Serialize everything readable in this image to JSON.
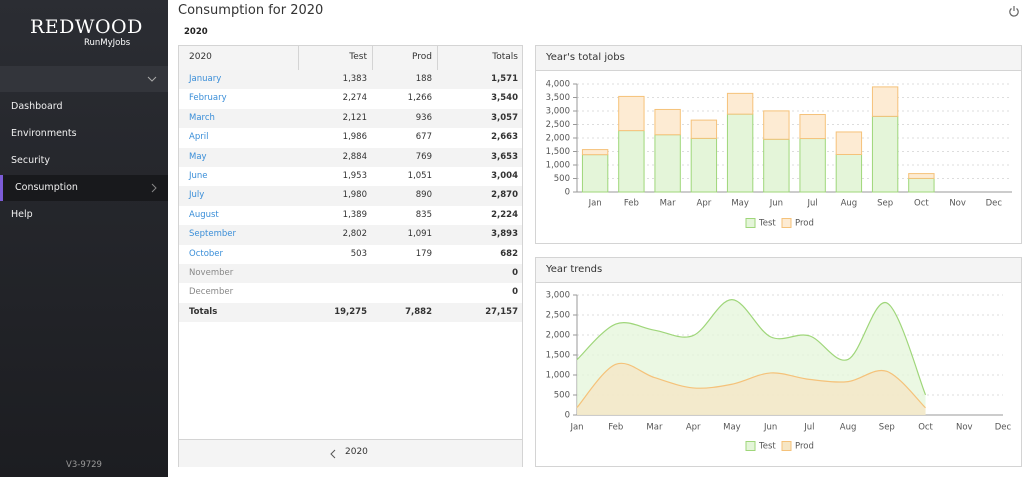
{
  "sidebar": {
    "logo": "REDWOOD",
    "logo_sub": "RunMyJobs",
    "nav": [
      "Dashboard",
      "Environments",
      "Security",
      "Consumption",
      "Help"
    ],
    "active": 3,
    "version": "V3-9729"
  },
  "header": {
    "title": "Consumption for 2020",
    "tab": "2020"
  },
  "table": {
    "columns": [
      "2020",
      "Test",
      "Prod",
      "Totals"
    ],
    "rows": [
      {
        "month": "January",
        "test": "1,383",
        "prod": "188",
        "total": "1,571"
      },
      {
        "month": "February",
        "test": "2,274",
        "prod": "1,266",
        "total": "3,540"
      },
      {
        "month": "March",
        "test": "2,121",
        "prod": "936",
        "total": "3,057"
      },
      {
        "month": "April",
        "test": "1,986",
        "prod": "677",
        "total": "2,663"
      },
      {
        "month": "May",
        "test": "2,884",
        "prod": "769",
        "total": "3,653"
      },
      {
        "month": "June",
        "test": "1,953",
        "prod": "1,051",
        "total": "3,004"
      },
      {
        "month": "July",
        "test": "1,980",
        "prod": "890",
        "total": "2,870"
      },
      {
        "month": "August",
        "test": "1,389",
        "prod": "835",
        "total": "2,224"
      },
      {
        "month": "September",
        "test": "2,802",
        "prod": "1,091",
        "total": "3,893"
      },
      {
        "month": "October",
        "test": "503",
        "prod": "179",
        "total": "682"
      },
      {
        "month": "November",
        "total": "0"
      },
      {
        "month": "December",
        "total": "0"
      }
    ],
    "totals": {
      "month": "Totals",
      "test": "19,275",
      "prod": "7,882",
      "total": "27,157"
    },
    "footer": "2020"
  },
  "charts": [
    {
      "type": "bar",
      "stacked": true,
      "title": "Year's total jobs",
      "categories": [
        "Jan",
        "Feb",
        "Mar",
        "Apr",
        "May",
        "Jun",
        "Jul",
        "Aug",
        "Sep",
        "Oct",
        "Nov",
        "Dec"
      ],
      "series": [
        {
          "name": "Test",
          "color": "#9fd67a",
          "fill": "#e4f5d9",
          "values": [
            1383,
            2274,
            2121,
            1986,
            2884,
            1953,
            1980,
            1389,
            2802,
            503,
            null,
            null
          ]
        },
        {
          "name": "Prod",
          "color": "#f5c27a",
          "fill": "#fdebd3",
          "values": [
            188,
            1266,
            936,
            677,
            769,
            1051,
            890,
            835,
            1091,
            179,
            null,
            null
          ]
        }
      ],
      "ylim": [
        0,
        4000
      ],
      "yticks": [
        0,
        500,
        {
          "value": 1000,
          "label": "1,000"
        },
        {
          "value": 1500,
          "label": "1,500"
        },
        {
          "value": 2000,
          "label": "2,000"
        },
        {
          "value": 2500,
          "label": "2,500"
        },
        {
          "value": 3000,
          "label": "3,000"
        },
        {
          "value": 3500,
          "label": "3,500"
        },
        {
          "value": 4000,
          "label": "4,000"
        }
      ],
      "grid": true,
      "legend": "bottom"
    },
    {
      "type": "line",
      "area": true,
      "smooth": true,
      "title": "Year trends",
      "categories": [
        "Jan",
        "Feb",
        "Mar",
        "Apr",
        "May",
        "Jun",
        "Jul",
        "Aug",
        "Sep",
        "Oct",
        "Nov",
        "Dec"
      ],
      "series": [
        {
          "name": "Test",
          "color": "#9fd67a",
          "fill": "#e4f5d9",
          "values": [
            1383,
            2274,
            2121,
            1986,
            2884,
            1953,
            1980,
            1389,
            2802,
            503,
            null,
            null
          ]
        },
        {
          "name": "Prod",
          "color": "#f5c27a",
          "fill": "#f6e6c4",
          "values": [
            188,
            1266,
            936,
            677,
            769,
            1051,
            890,
            835,
            1091,
            179,
            null,
            null
          ]
        }
      ],
      "ylim": [
        0,
        3000
      ],
      "yticks": [
        0,
        500,
        {
          "value": 1000,
          "label": "1,000"
        },
        {
          "value": 1500,
          "label": "1,500"
        },
        {
          "value": 2000,
          "label": "2,000"
        },
        {
          "value": 2500,
          "label": "2,500"
        },
        {
          "value": 3000,
          "label": "3,000"
        }
      ],
      "grid": true,
      "legend": "bottom"
    }
  ]
}
